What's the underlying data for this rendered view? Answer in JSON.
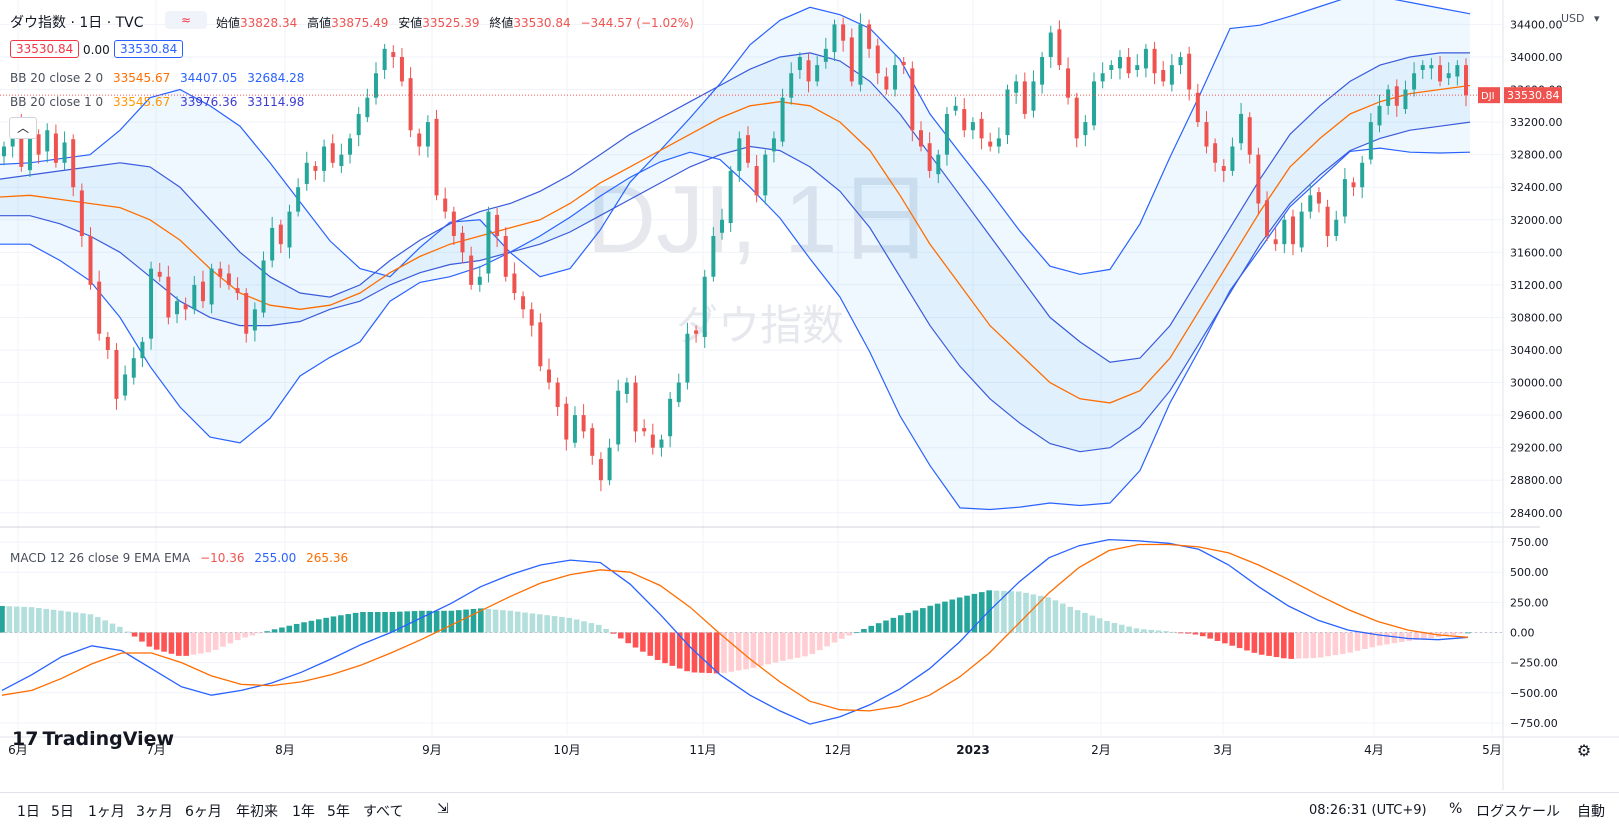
{
  "header": {
    "symbol_title": "ダウ指数 · 1日 · TVC",
    "toggle_label": "≈",
    "ohlc": {
      "open_label": "始値",
      "open": "33828.34",
      "high_label": "高値",
      "high": "33875.49",
      "low_label": "安値",
      "low": "33525.39",
      "close_label": "終値",
      "close": "33530.84",
      "change": "−344.57 (−1.02%)"
    },
    "bid": "33530.84",
    "spread": "0.00",
    "ask": "33530.84"
  },
  "indicators": {
    "bb2": {
      "label": "BB 20 close 2 0",
      "basis": "33545.67",
      "upper": "34407.05",
      "lower": "32684.28"
    },
    "bb1": {
      "label": "BB 20 close 1 0",
      "basis": "33545.67",
      "upper": "33976.36",
      "lower": "33114.98"
    },
    "macd": {
      "label": "MACD 12 26 close 9 EMA EMA",
      "hist": "−10.36",
      "macd": "255.00",
      "signal": "265.36"
    }
  },
  "watermark": {
    "main": "DJI, 1日",
    "sub": "ダウ指数"
  },
  "price_axis": {
    "currency": "USD",
    "ticks": [
      "34400.00",
      "34000.00",
      "33600.00",
      "33200.00",
      "32800.00",
      "32400.00",
      "32000.00",
      "31600.00",
      "31200.00",
      "30800.00",
      "30400.00",
      "30000.00",
      "29600.00",
      "29200.00",
      "28800.00",
      "28400.00"
    ],
    "last_label": "DJI",
    "last_value": "33530.84"
  },
  "macd_axis": {
    "ticks": [
      "750.00",
      "500.00",
      "250.00",
      "0.00",
      "−250.00",
      "−500.00",
      "−750.00"
    ]
  },
  "time_axis": {
    "labels": [
      "6月",
      "7月",
      "8月",
      "9月",
      "10月",
      "11月",
      "12月",
      "2023",
      "2月",
      "3月",
      "4月",
      "5月"
    ]
  },
  "bottom_bar": {
    "timeframes": [
      "1日",
      "5日",
      "1ヶ月",
      "3ヶ月",
      "6ヶ月",
      "年初来",
      "1年",
      "5年",
      "すべて"
    ],
    "clock": "08:26:31 (UTC+9)",
    "percent": "%",
    "log": "ログスケール",
    "auto": "自動"
  },
  "logo": "TradingView",
  "colors": {
    "up": "#26a69a",
    "down": "#ef5350",
    "basis": "#ff6d00",
    "band": "#2962ff",
    "band2": "#3b5bdb",
    "hist_up_strong": "#26a69a",
    "hist_up_weak": "#b2dfdb",
    "hist_down_strong": "#ff5252",
    "hist_down_weak": "#ffcdd2",
    "macd": "#2962ff",
    "signal": "#ff6d00"
  },
  "chart_data": {
    "type": "candlestick",
    "title": "ダウ指数 · 1日 · TVC",
    "ylim": [
      28250,
      34700
    ],
    "macd_ylim": [
      -850,
      850
    ],
    "x_labels": [
      "6月",
      "7月",
      "8月",
      "9月",
      "10月",
      "11月",
      "12月",
      "2023",
      "2月",
      "3月",
      "4月",
      "5月"
    ],
    "closes": [
      32900,
      33150,
      32650,
      33050,
      32800,
      33100,
      32700,
      32950,
      32400,
      31800,
      31200,
      30600,
      30400,
      29800,
      30100,
      30300,
      30500,
      31400,
      31300,
      30800,
      31000,
      30900,
      31200,
      31000,
      31400,
      31300,
      31200,
      31100,
      30600,
      30900,
      31500,
      31900,
      31700,
      32100,
      32400,
      32700,
      32600,
      32900,
      32700,
      32800,
      33000,
      33300,
      33500,
      33800,
      34100,
      34000,
      33700,
      33100,
      32900,
      33200,
      32300,
      32100,
      31800,
      31600,
      31200,
      31300,
      32100,
      31800,
      31300,
      31100,
      30900,
      30700,
      30200,
      30000,
      29700,
      29300,
      29600,
      29400,
      29100,
      28800,
      29200,
      29900,
      30000,
      29400,
      29400,
      29200,
      29300,
      29800,
      30000,
      30600,
      30600,
      31300,
      31800,
      32000,
      32600,
      33000,
      32700,
      32300,
      32800,
      33000,
      33500,
      33800,
      34000,
      33700,
      33900,
      34100,
      34400,
      34200,
      33700,
      34400,
      34100,
      33800,
      33600,
      33900,
      33900,
      33100,
      32900,
      32600,
      32800,
      33300,
      33400,
      33100,
      33200,
      33000,
      32900,
      33000,
      33600,
      33700,
      33300,
      33700,
      34000,
      34300,
      33900,
      33500,
      33000,
      33200,
      33700,
      33800,
      33900,
      34000,
      33800,
      33900,
      34100,
      33800,
      33700,
      33900,
      34000,
      33600,
      33200,
      32900,
      32700,
      32600,
      32900,
      33300,
      32800,
      32200,
      31800,
      31700,
      32000,
      31700,
      32100,
      32300,
      32200,
      31800,
      32000,
      32500,
      32400,
      32700,
      33200,
      33400,
      33600,
      33400,
      33600,
      33800,
      33900,
      33900,
      33700,
      33800,
      33900,
      33530
    ],
    "bb_upper_2": [
      32680,
      32700,
      32750,
      32800,
      33100,
      33500,
      33600,
      33400,
      33150,
      32700,
      32220,
      31740,
      31400,
      31300,
      31660,
      31970,
      32000,
      31600,
      31300,
      31400,
      31870,
      32460,
      32850,
      33250,
      33670,
      34150,
      34450,
      34610,
      34520,
      34350,
      33970,
      33300,
      32820,
      32350,
      31860,
      31430,
      31330,
      31390,
      31950,
      32770,
      33540,
      34350,
      34390,
      34500,
      34620,
      34740,
      34740,
      34670,
      34600,
      34530
    ],
    "bb_lower_2": [
      31700,
      31700,
      31500,
      31250,
      30800,
      30200,
      29700,
      29330,
      29260,
      29560,
      30080,
      30310,
      30500,
      31000,
      31230,
      31300,
      31420,
      31600,
      31800,
      32030,
      32290,
      32520,
      32710,
      32830,
      32740,
      32400,
      32020,
      31520,
      31050,
      30370,
      29590,
      28980,
      28460,
      28440,
      28470,
      28520,
      28490,
      28520,
      28920,
      29750,
      30420,
      31130,
      31640,
      32160,
      32500,
      32840,
      32880,
      32830,
      32820,
      32830
    ],
    "bb_upper_1": [
      32500,
      32550,
      32600,
      32650,
      32700,
      32650,
      32400,
      32000,
      31600,
      31300,
      31100,
      31050,
      31200,
      31500,
      31750,
      31950,
      32100,
      32200,
      32350,
      32550,
      32800,
      33050,
      33250,
      33450,
      33650,
      33850,
      34000,
      34050,
      33950,
      33700,
      33300,
      32800,
      32300,
      31800,
      31300,
      30800,
      30500,
      30250,
      30300,
      30700,
      31300,
      31900,
      32500,
      33050,
      33400,
      33700,
      33900,
      34000,
      34050,
      34050
    ],
    "bb_lower_1": [
      32050,
      32050,
      31950,
      31800,
      31600,
      31300,
      31000,
      30800,
      30700,
      30700,
      30750,
      30900,
      31000,
      31200,
      31350,
      31450,
      31500,
      31600,
      31700,
      31850,
      32050,
      32250,
      32450,
      32650,
      32800,
      32900,
      32850,
      32650,
      32350,
      31900,
      31300,
      30700,
      30200,
      29800,
      29500,
      29250,
      29150,
      29200,
      29450,
      29900,
      30500,
      31100,
      31700,
      32200,
      32550,
      32850,
      33000,
      33100,
      33150,
      33200
    ],
    "bb_basis": [
      32280,
      32300,
      32250,
      32200,
      32150,
      32000,
      31750,
      31400,
      31100,
      30950,
      30900,
      30950,
      31100,
      31350,
      31550,
      31700,
      31800,
      31900,
      32000,
      32200,
      32450,
      32650,
      32850,
      33050,
      33250,
      33400,
      33450,
      33400,
      33200,
      32850,
      32300,
      31700,
      31200,
      30700,
      30350,
      30000,
      29800,
      29750,
      29900,
      30300,
      30900,
      31500,
      32100,
      32650,
      33000,
      33300,
      33450,
      33550,
      33600,
      33650
    ],
    "macd_line": [
      -480,
      -350,
      -200,
      -110,
      -150,
      -300,
      -450,
      -520,
      -480,
      -420,
      -330,
      -220,
      -100,
      0,
      120,
      240,
      380,
      480,
      560,
      600,
      580,
      400,
      150,
      -120,
      -350,
      -520,
      -650,
      -760,
      -700,
      -600,
      -470,
      -300,
      -80,
      180,
      420,
      620,
      720,
      770,
      760,
      740,
      690,
      560,
      380,
      220,
      100,
      20,
      -20,
      -50,
      -60,
      -40
    ],
    "macd_signal": [
      -520,
      -480,
      -380,
      -260,
      -170,
      -170,
      -250,
      -360,
      -430,
      -440,
      -410,
      -350,
      -270,
      -170,
      -60,
      60,
      180,
      300,
      410,
      480,
      520,
      500,
      390,
      210,
      -10,
      -220,
      -410,
      -570,
      -640,
      -650,
      -610,
      -520,
      -370,
      -170,
      80,
      330,
      540,
      680,
      730,
      730,
      710,
      660,
      560,
      440,
      310,
      190,
      90,
      20,
      -20,
      -40
    ],
    "macd_hist": [
      220,
      210,
      180,
      150,
      40,
      -130,
      -200,
      -160,
      -50,
      20,
      80,
      130,
      170,
      170,
      180,
      180,
      200,
      180,
      150,
      120,
      60,
      -100,
      -240,
      -330,
      -340,
      -300,
      -240,
      -190,
      -60,
      50,
      140,
      220,
      290,
      350,
      340,
      290,
      180,
      90,
      30,
      10,
      -20,
      -100,
      -180,
      -220,
      -210,
      -170,
      -110,
      -70,
      -40,
      0
    ]
  }
}
